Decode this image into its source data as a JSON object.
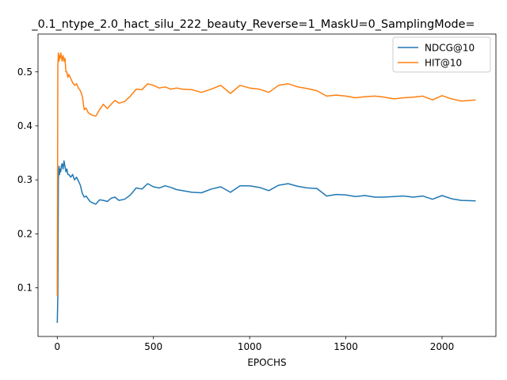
{
  "chart_data": {
    "type": "line",
    "title": "_0.1_ntype_2.0_hact_silu_222_beauty_Reverse=1_MaskU=0_SamplingMode=",
    "xlabel": "EPOCHS",
    "ylabel": "",
    "xlim": [
      -100,
      2280
    ],
    "ylim": [
      0.01,
      0.57
    ],
    "xticks": [
      0,
      500,
      1000,
      1500,
      2000
    ],
    "yticks": [
      0.1,
      0.2,
      0.3,
      0.4,
      0.5
    ],
    "xtick_labels": [
      "0",
      "500",
      "1000",
      "1500",
      "2000"
    ],
    "ytick_labels": [
      "0.1",
      "0.2",
      "0.3",
      "0.4",
      "0.5"
    ],
    "grid": false,
    "legend_position": "top-right",
    "series": [
      {
        "name": "NDCG@10",
        "color": "#1f77b4",
        "x": [
          0,
          3,
          6,
          9,
          12,
          15,
          18,
          21,
          25,
          30,
          35,
          40,
          45,
          50,
          55,
          60,
          70,
          80,
          90,
          100,
          110,
          120,
          130,
          140,
          150,
          160,
          170,
          180,
          200,
          220,
          240,
          260,
          280,
          300,
          320,
          350,
          380,
          410,
          440,
          470,
          500,
          530,
          560,
          590,
          620,
          650,
          700,
          750,
          800,
          850,
          900,
          950,
          1000,
          1050,
          1100,
          1150,
          1200,
          1250,
          1300,
          1350,
          1400,
          1450,
          1500,
          1550,
          1600,
          1650,
          1700,
          1750,
          1800,
          1850,
          1900,
          1950,
          2000,
          2050,
          2100,
          2175
        ],
        "values": [
          0.035,
          0.085,
          0.3,
          0.325,
          0.31,
          0.32,
          0.315,
          0.325,
          0.33,
          0.32,
          0.335,
          0.325,
          0.315,
          0.32,
          0.31,
          0.31,
          0.305,
          0.31,
          0.3,
          0.305,
          0.298,
          0.29,
          0.275,
          0.268,
          0.27,
          0.265,
          0.26,
          0.258,
          0.255,
          0.263,
          0.262,
          0.26,
          0.266,
          0.268,
          0.262,
          0.264,
          0.272,
          0.285,
          0.283,
          0.293,
          0.287,
          0.285,
          0.289,
          0.286,
          0.282,
          0.28,
          0.277,
          0.276,
          0.283,
          0.287,
          0.277,
          0.289,
          0.289,
          0.286,
          0.28,
          0.29,
          0.293,
          0.288,
          0.285,
          0.284,
          0.27,
          0.273,
          0.272,
          0.269,
          0.271,
          0.268,
          0.268,
          0.269,
          0.27,
          0.268,
          0.27,
          0.264,
          0.271,
          0.265,
          0.262,
          0.261
        ]
      },
      {
        "name": "HIT@10",
        "color": "#ff7f0e",
        "x": [
          0,
          3,
          6,
          9,
          12,
          15,
          18,
          21,
          25,
          30,
          35,
          40,
          45,
          50,
          55,
          60,
          70,
          80,
          90,
          100,
          110,
          120,
          130,
          140,
          150,
          160,
          170,
          180,
          200,
          220,
          240,
          260,
          280,
          300,
          320,
          350,
          380,
          410,
          440,
          470,
          500,
          530,
          560,
          590,
          620,
          650,
          700,
          750,
          800,
          850,
          900,
          950,
          1000,
          1050,
          1100,
          1150,
          1200,
          1250,
          1300,
          1350,
          1400,
          1450,
          1500,
          1550,
          1600,
          1650,
          1700,
          1750,
          1800,
          1850,
          1900,
          1950,
          2000,
          2050,
          2100,
          2175
        ],
        "values": [
          0.085,
          0.51,
          0.535,
          0.52,
          0.53,
          0.525,
          0.535,
          0.53,
          0.52,
          0.53,
          0.52,
          0.525,
          0.5,
          0.5,
          0.49,
          0.495,
          0.488,
          0.48,
          0.475,
          0.478,
          0.47,
          0.465,
          0.455,
          0.43,
          0.433,
          0.425,
          0.422,
          0.42,
          0.418,
          0.43,
          0.44,
          0.432,
          0.44,
          0.447,
          0.442,
          0.445,
          0.455,
          0.468,
          0.467,
          0.478,
          0.475,
          0.47,
          0.472,
          0.468,
          0.47,
          0.468,
          0.467,
          0.462,
          0.468,
          0.475,
          0.46,
          0.475,
          0.47,
          0.468,
          0.462,
          0.475,
          0.478,
          0.472,
          0.469,
          0.465,
          0.455,
          0.457,
          0.455,
          0.452,
          0.454,
          0.455,
          0.453,
          0.45,
          0.452,
          0.453,
          0.455,
          0.448,
          0.456,
          0.45,
          0.446,
          0.448
        ]
      }
    ]
  }
}
